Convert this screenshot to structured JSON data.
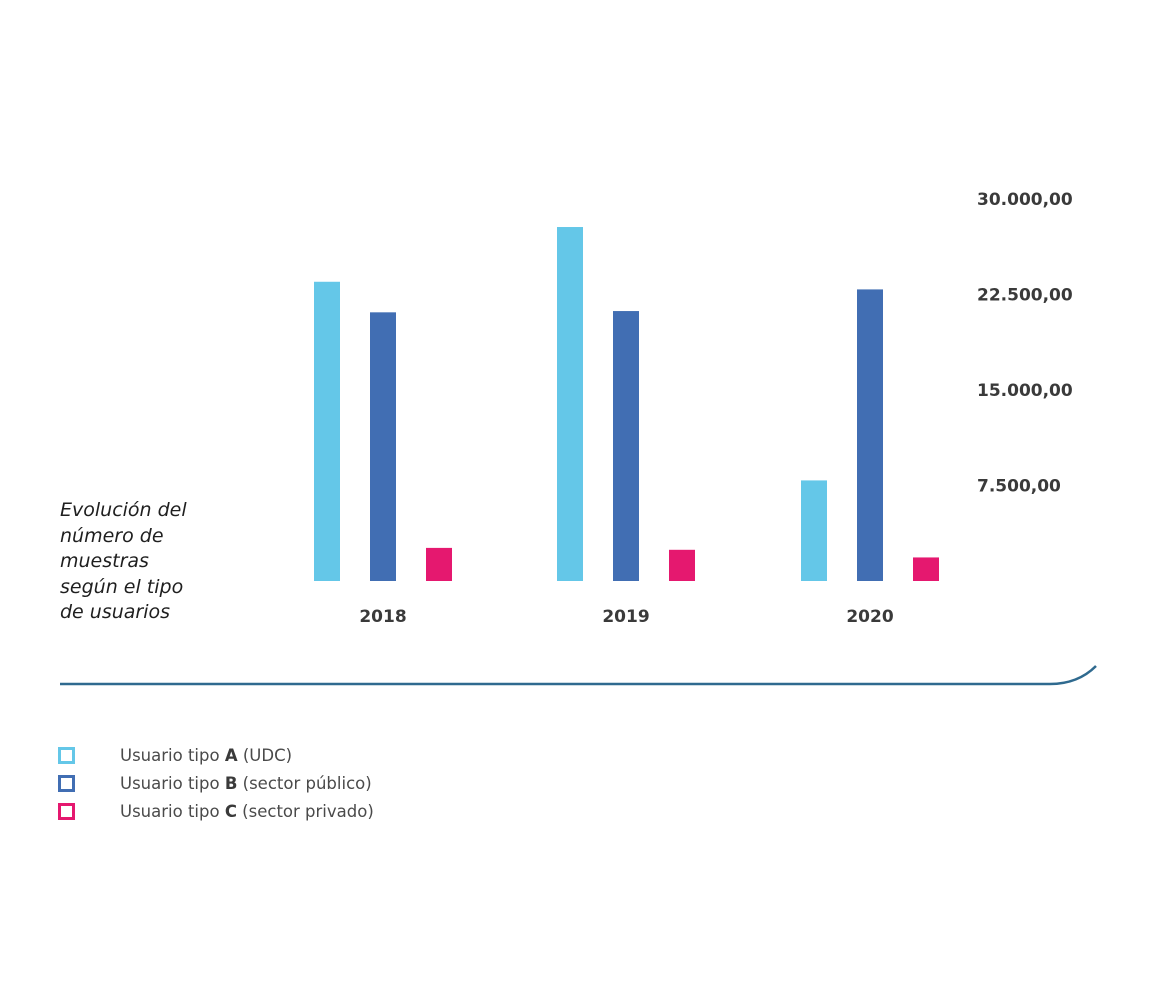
{
  "chart_data": {
    "type": "bar",
    "title": "Evolución del\nnúmero de\nmuestras\nsegún el tipo\nde usuarios",
    "categories": [
      "2018",
      "2019",
      "2020"
    ],
    "series": [
      {
        "name_prefix": "Usuario tipo ",
        "name_bold": "A",
        "name_suffix": " (UDC)",
        "color": "#64c7e8",
        "values": [
          23500,
          27800,
          7900
        ]
      },
      {
        "name_prefix": "Usuario tipo ",
        "name_bold": "B",
        "name_suffix": " (sector público)",
        "color": "#416eb3",
        "values": [
          21100,
          21200,
          22900
        ]
      },
      {
        "name_prefix": "Usuario tipo ",
        "name_bold": "C",
        "name_suffix": " (sector privado)",
        "color": "#e5186f",
        "values": [
          2600,
          2450,
          1850
        ]
      }
    ],
    "yticks": [
      "30.000,00",
      "22.500,00",
      "15.000,00",
      "7.500,00"
    ],
    "ytick_values": [
      30000,
      22500,
      15000,
      7500
    ],
    "ylim": [
      0,
      30000
    ],
    "y_axis_position": "right",
    "grid": false,
    "legend_position": "bottom-left"
  },
  "colors": {
    "accent_line": "#2f6a8f",
    "tick_text": "#3a3a3a"
  }
}
